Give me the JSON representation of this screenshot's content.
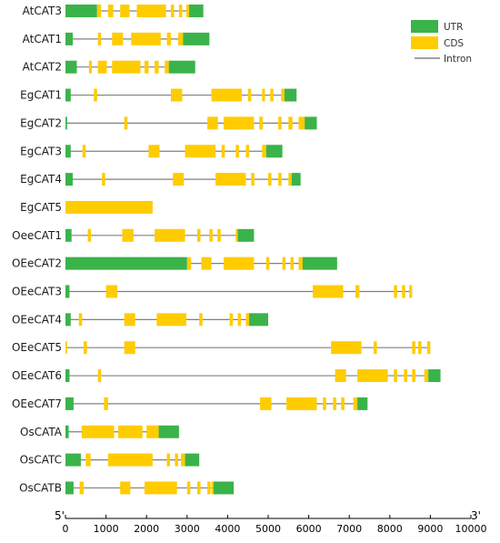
{
  "colors": {
    "utr": "#3ab34a",
    "cds": "#ffcc00",
    "intron": "#808080",
    "axis": "#000000"
  },
  "legend": [
    {
      "key": "utr",
      "label": "UTR"
    },
    {
      "key": "cds",
      "label": "CDS"
    },
    {
      "key": "intron",
      "label": "Intron"
    }
  ],
  "axis": {
    "min": 0,
    "max": 10000,
    "ticks": [
      0,
      1000,
      2000,
      3000,
      4000,
      5000,
      6000,
      7000,
      8000,
      9000,
      10000
    ],
    "start_label": "5'",
    "end_label": "3'"
  },
  "genes": [
    {
      "name": "AtCAT3",
      "length": 3400,
      "features": [
        [
          "utr",
          0,
          780
        ],
        [
          "cds",
          780,
          880
        ],
        [
          "cds",
          1050,
          1180
        ],
        [
          "cds",
          1350,
          1580
        ],
        [
          "cds",
          1760,
          2480
        ],
        [
          "cds",
          2600,
          2680
        ],
        [
          "cds",
          2800,
          2880
        ],
        [
          "cds",
          2980,
          3050
        ],
        [
          "utr",
          3050,
          3400
        ]
      ]
    },
    {
      "name": "AtCAT1",
      "length": 3550,
      "features": [
        [
          "utr",
          0,
          180
        ],
        [
          "cds",
          800,
          880
        ],
        [
          "cds",
          1150,
          1420
        ],
        [
          "cds",
          1620,
          2350
        ],
        [
          "cds",
          2500,
          2600
        ],
        [
          "cds",
          2780,
          2900
        ],
        [
          "utr",
          2900,
          3550
        ]
      ]
    },
    {
      "name": "AtCAT2",
      "length": 3200,
      "features": [
        [
          "utr",
          0,
          280
        ],
        [
          "cds",
          580,
          650
        ],
        [
          "cds",
          800,
          1020
        ],
        [
          "cds",
          1150,
          1850
        ],
        [
          "cds",
          1950,
          2050
        ],
        [
          "cds",
          2200,
          2300
        ],
        [
          "cds",
          2450,
          2550
        ],
        [
          "utr",
          2550,
          3200
        ]
      ]
    },
    {
      "name": "EgCAT1",
      "length": 5700,
      "features": [
        [
          "utr",
          0,
          130
        ],
        [
          "cds",
          700,
          780
        ],
        [
          "cds",
          2600,
          2880
        ],
        [
          "cds",
          3600,
          4350
        ],
        [
          "cds",
          4500,
          4580
        ],
        [
          "cds",
          4850,
          4920
        ],
        [
          "cds",
          5050,
          5130
        ],
        [
          "cds",
          5320,
          5400
        ],
        [
          "utr",
          5400,
          5700
        ]
      ]
    },
    {
      "name": "EgCAT2",
      "length": 6200,
      "features": [
        [
          "utr",
          0,
          40
        ],
        [
          "cds",
          1450,
          1530
        ],
        [
          "cds",
          3500,
          3760
        ],
        [
          "cds",
          3900,
          4650
        ],
        [
          "cds",
          4780,
          4870
        ],
        [
          "cds",
          5250,
          5330
        ],
        [
          "cds",
          5500,
          5600
        ],
        [
          "cds",
          5750,
          5900
        ],
        [
          "utr",
          5900,
          6200
        ]
      ]
    },
    {
      "name": "EgCAT3",
      "length": 5350,
      "features": [
        [
          "utr",
          0,
          130
        ],
        [
          "cds",
          420,
          500
        ],
        [
          "cds",
          2050,
          2320
        ],
        [
          "cds",
          2950,
          3700
        ],
        [
          "cds",
          3850,
          3930
        ],
        [
          "cds",
          4200,
          4280
        ],
        [
          "cds",
          4450,
          4530
        ],
        [
          "cds",
          4850,
          4950
        ],
        [
          "utr",
          4950,
          5350
        ]
      ]
    },
    {
      "name": "EgCAT4",
      "length": 5800,
      "features": [
        [
          "utr",
          0,
          180
        ],
        [
          "cds",
          900,
          980
        ],
        [
          "cds",
          2650,
          2920
        ],
        [
          "cds",
          3700,
          4450
        ],
        [
          "cds",
          4580,
          4660
        ],
        [
          "cds",
          5000,
          5080
        ],
        [
          "cds",
          5250,
          5330
        ],
        [
          "cds",
          5500,
          5580
        ],
        [
          "utr",
          5580,
          5800
        ]
      ]
    },
    {
      "name": "EgCAT5",
      "length": 2150,
      "features": [
        [
          "cds",
          0,
          2150
        ]
      ]
    },
    {
      "name": "OeeCAT1",
      "length": 4650,
      "features": [
        [
          "utr",
          0,
          150
        ],
        [
          "cds",
          550,
          630
        ],
        [
          "cds",
          1400,
          1680
        ],
        [
          "cds",
          2200,
          2950
        ],
        [
          "cds",
          3250,
          3330
        ],
        [
          "cds",
          3550,
          3630
        ],
        [
          "cds",
          3750,
          3830
        ],
        [
          "cds",
          4200,
          4250
        ],
        [
          "utr",
          4250,
          4650
        ]
      ]
    },
    {
      "name": "OEeCAT2",
      "length": 6700,
      "features": [
        [
          "utr",
          0,
          3000
        ],
        [
          "cds",
          3000,
          3100
        ],
        [
          "cds",
          3350,
          3600
        ],
        [
          "cds",
          3900,
          4650
        ],
        [
          "cds",
          4950,
          5030
        ],
        [
          "cds",
          5350,
          5430
        ],
        [
          "cds",
          5550,
          5630
        ],
        [
          "cds",
          5750,
          5850
        ],
        [
          "utr",
          5850,
          6700
        ]
      ]
    },
    {
      "name": "OEeCAT3",
      "length": 8550,
      "features": [
        [
          "utr",
          0,
          100
        ],
        [
          "cds",
          1000,
          1280
        ],
        [
          "cds",
          6100,
          6850
        ],
        [
          "cds",
          7150,
          7250
        ],
        [
          "cds",
          8100,
          8180
        ],
        [
          "cds",
          8300,
          8380
        ],
        [
          "cds",
          8480,
          8550
        ]
      ]
    },
    {
      "name": "OEeCAT4",
      "length": 5000,
      "features": [
        [
          "utr",
          0,
          130
        ],
        [
          "cds",
          330,
          410
        ],
        [
          "cds",
          1450,
          1720
        ],
        [
          "cds",
          2250,
          2980
        ],
        [
          "cds",
          3300,
          3380
        ],
        [
          "cds",
          4050,
          4130
        ],
        [
          "cds",
          4250,
          4330
        ],
        [
          "cds",
          4450,
          4530
        ],
        [
          "utr",
          4530,
          5000
        ]
      ]
    },
    {
      "name": "OEeCAT5",
      "length": 9000,
      "features": [
        [
          "cds",
          0,
          40
        ],
        [
          "cds",
          450,
          530
        ],
        [
          "cds",
          1450,
          1720
        ],
        [
          "cds",
          6550,
          7300
        ],
        [
          "cds",
          7600,
          7680
        ],
        [
          "cds",
          8550,
          8630
        ],
        [
          "cds",
          8700,
          8780
        ],
        [
          "cds",
          8920,
          9000
        ]
      ]
    },
    {
      "name": "OEeCAT6",
      "length": 9250,
      "features": [
        [
          "utr",
          0,
          100
        ],
        [
          "cds",
          800,
          880
        ],
        [
          "cds",
          6650,
          6920
        ],
        [
          "cds",
          7200,
          7950
        ],
        [
          "cds",
          8100,
          8180
        ],
        [
          "cds",
          8350,
          8430
        ],
        [
          "cds",
          8550,
          8630
        ],
        [
          "cds",
          8850,
          8950
        ],
        [
          "utr",
          8950,
          9250
        ]
      ]
    },
    {
      "name": "OEeCAT7",
      "length": 7450,
      "features": [
        [
          "utr",
          0,
          200
        ],
        [
          "cds",
          950,
          1050
        ],
        [
          "cds",
          4800,
          5080
        ],
        [
          "cds",
          5450,
          6200
        ],
        [
          "cds",
          6350,
          6430
        ],
        [
          "cds",
          6600,
          6680
        ],
        [
          "cds",
          6800,
          6880
        ],
        [
          "cds",
          7100,
          7200
        ],
        [
          "utr",
          7200,
          7450
        ]
      ]
    },
    {
      "name": "OsCATA",
      "length": 2800,
      "features": [
        [
          "utr",
          0,
          80
        ],
        [
          "cds",
          400,
          1200
        ],
        [
          "cds",
          1300,
          1900
        ],
        [
          "cds",
          2000,
          2300
        ],
        [
          "utr",
          2300,
          2800
        ]
      ]
    },
    {
      "name": "OsCATC",
      "length": 3300,
      "features": [
        [
          "utr",
          0,
          380
        ],
        [
          "cds",
          500,
          620
        ],
        [
          "cds",
          1050,
          2150
        ],
        [
          "cds",
          2500,
          2580
        ],
        [
          "cds",
          2700,
          2780
        ],
        [
          "cds",
          2850,
          2950
        ],
        [
          "utr",
          2950,
          3300
        ]
      ]
    },
    {
      "name": "OsCATB",
      "length": 4150,
      "features": [
        [
          "utr",
          0,
          200
        ],
        [
          "cds",
          350,
          450
        ],
        [
          "cds",
          1350,
          1600
        ],
        [
          "cds",
          1950,
          2750
        ],
        [
          "cds",
          3000,
          3080
        ],
        [
          "cds",
          3250,
          3330
        ],
        [
          "cds",
          3500,
          3580
        ],
        [
          "cds",
          3600,
          3650
        ],
        [
          "utr",
          3650,
          4150
        ]
      ]
    }
  ]
}
